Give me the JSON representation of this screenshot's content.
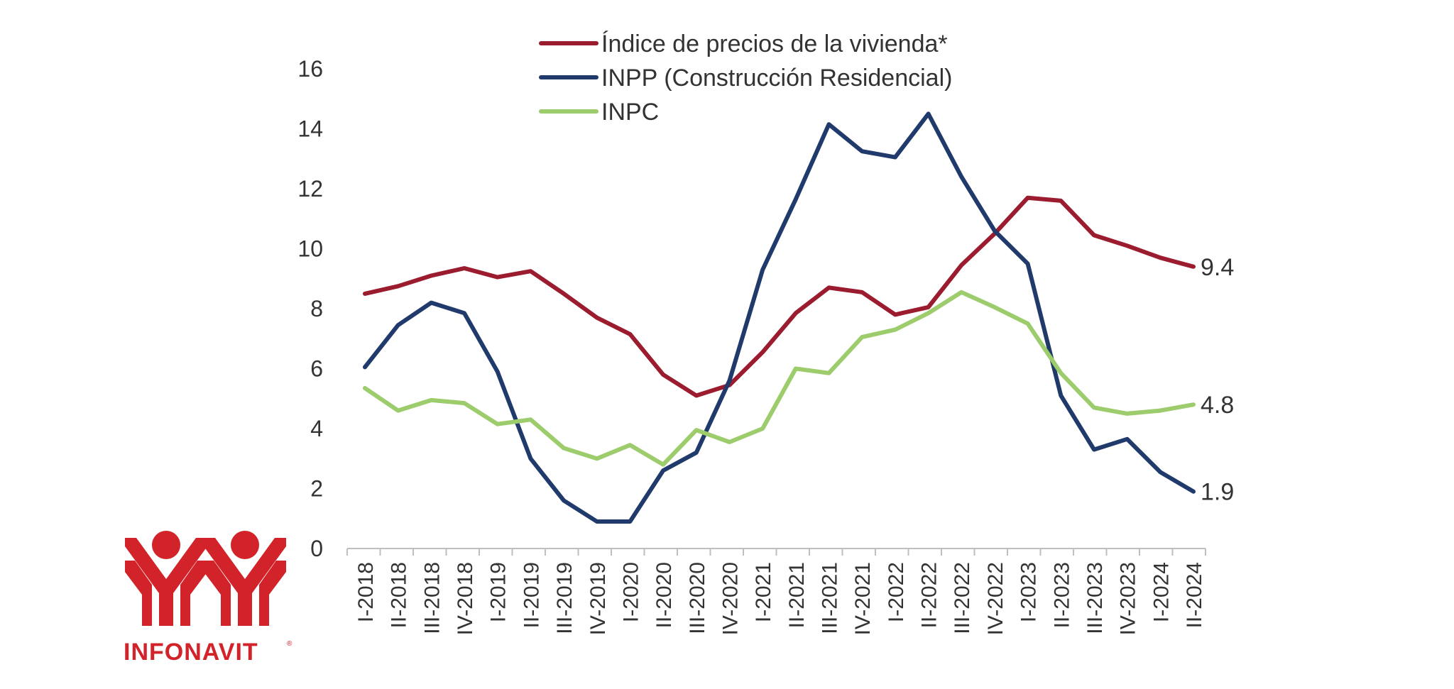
{
  "brand": {
    "name": "INFONAVIT",
    "registered": "®",
    "color": "#d2232a"
  },
  "chart_data": {
    "type": "line",
    "title": "",
    "xlabel": "",
    "ylabel": "",
    "ylim": [
      0,
      16
    ],
    "yticks": [
      0,
      2,
      4,
      6,
      8,
      10,
      12,
      14,
      16
    ],
    "grid": false,
    "legend_position": "top",
    "categories": [
      "I-2018",
      "II-2018",
      "III-2018",
      "IV-2018",
      "I-2019",
      "II-2019",
      "III-2019",
      "IV-2019",
      "I-2020",
      "II-2020",
      "III-2020",
      "IV-2020",
      "I-2021",
      "II-2021",
      "III-2021",
      "IV-2021",
      "I-2022",
      "II-2022",
      "III-2022",
      "IV-2022",
      "I-2023",
      "II-2023",
      "III-2023",
      "IV-2023",
      "I-2024",
      "II-2024"
    ],
    "series": [
      {
        "name": "Índice de precios de la vivienda*",
        "color": "#9b1c2e",
        "values": [
          8.5,
          8.75,
          9.1,
          9.35,
          9.05,
          9.25,
          8.5,
          7.7,
          7.15,
          5.8,
          5.1,
          5.45,
          6.55,
          7.85,
          8.7,
          8.55,
          7.8,
          8.05,
          9.45,
          10.5,
          11.7,
          11.6,
          10.45,
          10.1,
          9.7,
          9.4
        ],
        "end_label": "9.4"
      },
      {
        "name": "INPP (Construcción Residencial)",
        "color": "#1f3a6b",
        "values": [
          6.05,
          7.45,
          8.2,
          7.85,
          5.9,
          3.0,
          1.6,
          0.9,
          0.9,
          2.6,
          3.2,
          5.6,
          9.3,
          11.65,
          14.15,
          13.25,
          13.05,
          14.5,
          12.4,
          10.6,
          9.5,
          5.1,
          3.3,
          3.65,
          2.55,
          1.9
        ],
        "end_label": "1.9"
      },
      {
        "name": "INPC",
        "color": "#9ccc6c",
        "values": [
          5.35,
          4.6,
          4.95,
          4.85,
          4.15,
          4.3,
          3.35,
          3.0,
          3.45,
          2.8,
          3.95,
          3.55,
          4.0,
          6.0,
          5.85,
          7.05,
          7.3,
          7.85,
          8.55,
          8.05,
          7.5,
          5.85,
          4.7,
          4.5,
          4.6,
          4.8
        ],
        "end_label": "4.8"
      }
    ]
  }
}
